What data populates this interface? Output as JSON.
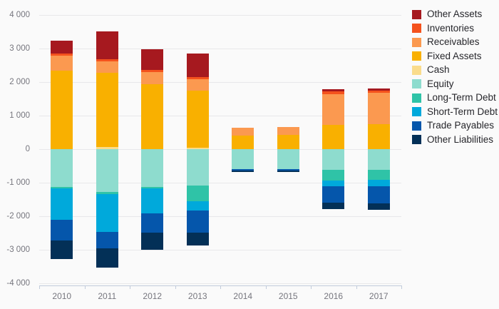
{
  "colors": {
    "background": "#fafafa",
    "gridline": "#e8e8ea",
    "axis_line": "#c1cbdb",
    "tick_label_color": "#76767e",
    "legend_text_color": "#26262b"
  },
  "chart_data": {
    "type": "bar",
    "stacked": true,
    "title": "",
    "xlabel": "",
    "ylabel": "",
    "grid": true,
    "legend_position": "top-right",
    "categories": [
      "2010",
      "2011",
      "2012",
      "2013",
      "2014",
      "2015",
      "2016",
      "2017"
    ],
    "ylim": [
      -4000,
      4000
    ],
    "y_ticks": [
      4000,
      3000,
      2000,
      1000,
      0,
      -1000,
      -2000,
      -3000,
      -4000
    ],
    "y_tick_labels": [
      "4 000",
      "3 000",
      "2 000",
      "1 000",
      "0",
      "-1 000",
      "-2 000",
      "-3 000",
      "-4 000"
    ],
    "series": [
      {
        "name": "Other Assets",
        "color": "#a6191f",
        "values": [
          390,
          830,
          630,
          700,
          0,
          0,
          55,
          55
        ]
      },
      {
        "name": "Inventories",
        "color": "#f4521d",
        "values": [
          65,
          65,
          65,
          65,
          0,
          0,
          85,
          65
        ]
      },
      {
        "name": "Receivables",
        "color": "#fb9950",
        "values": [
          450,
          340,
          355,
          330,
          240,
          235,
          925,
          925
        ]
      },
      {
        "name": "Fixed Assets",
        "color": "#f9b000",
        "values": [
          2330,
          2210,
          1935,
          1710,
          400,
          420,
          715,
          755
        ]
      },
      {
        "name": "Cash",
        "color": "#fadc8c",
        "values": [
          0,
          60,
          0,
          45,
          0,
          0,
          0,
          0
        ]
      },
      {
        "name": "Equity",
        "color": "#8edcce",
        "values": [
          -1130,
          -1270,
          -1120,
          -1075,
          -590,
          -605,
          -615,
          -620
        ]
      },
      {
        "name": "Long-Term Debt",
        "color": "#2fc3a7",
        "values": [
          -40,
          -70,
          -40,
          -485,
          0,
          0,
          -320,
          -290
        ]
      },
      {
        "name": "Short-Term Debt",
        "color": "#00a9db",
        "values": [
          -930,
          -1120,
          -755,
          -280,
          0,
          0,
          -180,
          -200
        ]
      },
      {
        "name": "Trade Payables",
        "color": "#0556ab",
        "values": [
          -620,
          -490,
          -570,
          -640,
          -50,
          -30,
          -480,
          -510
        ]
      },
      {
        "name": "Other Liabilities",
        "color": "#033057",
        "values": [
          -550,
          -585,
          -510,
          -390,
          -40,
          -40,
          -190,
          -190
        ]
      }
    ],
    "stack_order": [
      "Cash",
      "Fixed Assets",
      "Receivables",
      "Inventories",
      "Other Assets",
      "Equity",
      "Long-Term Debt",
      "Short-Term Debt",
      "Trade Payables",
      "Other Liabilities"
    ]
  }
}
